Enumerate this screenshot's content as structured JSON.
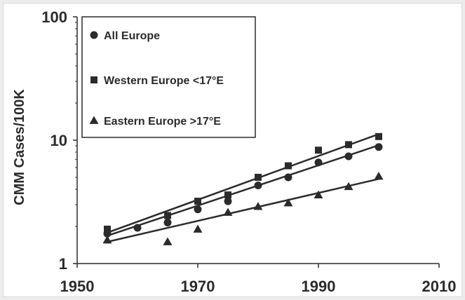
{
  "chart_data": {
    "type": "scatter",
    "ylabel": "CMM Cases/100K",
    "xlabel": "",
    "title": "",
    "y_scale": "log",
    "xlim": [
      1950,
      2010
    ],
    "ylim": [
      1,
      100
    ],
    "x_ticks": [
      "1950",
      "1970",
      "1990",
      "2010"
    ],
    "y_ticks": [
      "1",
      "10",
      "100"
    ],
    "grid": false,
    "legend_position": "top-left",
    "series": [
      {
        "name": "All Europe",
        "marker": "circle",
        "color": "#2b2b2b",
        "x": [
          1955,
          1960,
          1965,
          1970,
          1975,
          1980,
          1985,
          1990,
          1995,
          2000
        ],
        "values": [
          1.75,
          1.95,
          2.15,
          2.75,
          3.2,
          4.3,
          5.0,
          6.6,
          7.4,
          8.8
        ],
        "trendline": {
          "x": [
            1955,
            2000
          ],
          "y": [
            1.68,
            9.1
          ]
        }
      },
      {
        "name": "Western Europe <17°E",
        "marker": "square",
        "color": "#2b2b2b",
        "x": [
          1955,
          1965,
          1970,
          1975,
          1980,
          1985,
          1990,
          1995,
          2000
        ],
        "values": [
          1.9,
          2.45,
          3.2,
          3.6,
          5.0,
          6.2,
          8.3,
          9.2,
          10.7
        ],
        "trendline": {
          "x": [
            1955,
            2000
          ],
          "y": [
            1.78,
            11.2
          ]
        }
      },
      {
        "name": "Eastern Europe >17°E",
        "marker": "triangle",
        "color": "#2b2b2b",
        "x": [
          1955,
          1965,
          1970,
          1975,
          1980,
          1985,
          1990,
          1995,
          2000
        ],
        "values": [
          1.55,
          1.5,
          1.9,
          2.6,
          2.9,
          3.1,
          3.6,
          4.2,
          5.1
        ],
        "trendline": {
          "x": [
            1955,
            2000
          ],
          "y": [
            1.5,
            4.85
          ]
        }
      }
    ]
  }
}
